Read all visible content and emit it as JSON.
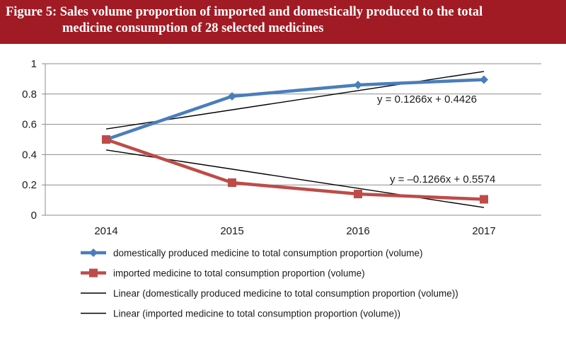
{
  "title_line1": "Figure 5: Sales volume proportion of imported and domestically produced to the total",
  "title_line2": "medicine consumption of 28 selected medicines",
  "colors": {
    "header": "#a01b24",
    "domestic": "#4a7ebb",
    "imported": "#be4b48",
    "trend": "#000000"
  },
  "chart_data": {
    "type": "line",
    "categories": [
      "2014",
      "2015",
      "2016",
      "2017"
    ],
    "x": [
      2014,
      2015,
      2016,
      2017
    ],
    "ylim": [
      0,
      1
    ],
    "yticks": [
      0,
      0.2,
      0.4,
      0.6,
      0.8,
      1
    ],
    "ytick_labels": [
      "0",
      "0.2",
      "0.4",
      "0.6",
      "0.8",
      "1"
    ],
    "grid": true,
    "legend_placement": "bottom",
    "series": [
      {
        "name": "domestically produced medicine to total consumption proportion (volume)",
        "values": [
          0.5,
          0.785,
          0.86,
          0.895
        ],
        "marker": "diamond"
      },
      {
        "name": "imported medicine to total consumption proportion (volume)",
        "values": [
          0.5,
          0.215,
          0.14,
          0.105
        ],
        "marker": "square"
      },
      {
        "name": "Linear (domestically produced medicine to total consumption proportion (volume))",
        "trendline": true,
        "slope": 0.1266,
        "intercept": 0.4426
      },
      {
        "name": "Linear (imported medicine to total consumption proportion (volume))",
        "trendline": true,
        "slope": -0.1266,
        "intercept": 0.5574
      }
    ],
    "annotations": [
      "y = 0.1266x + 0.4426",
      "y = –0.1266x + 0.5574"
    ]
  }
}
